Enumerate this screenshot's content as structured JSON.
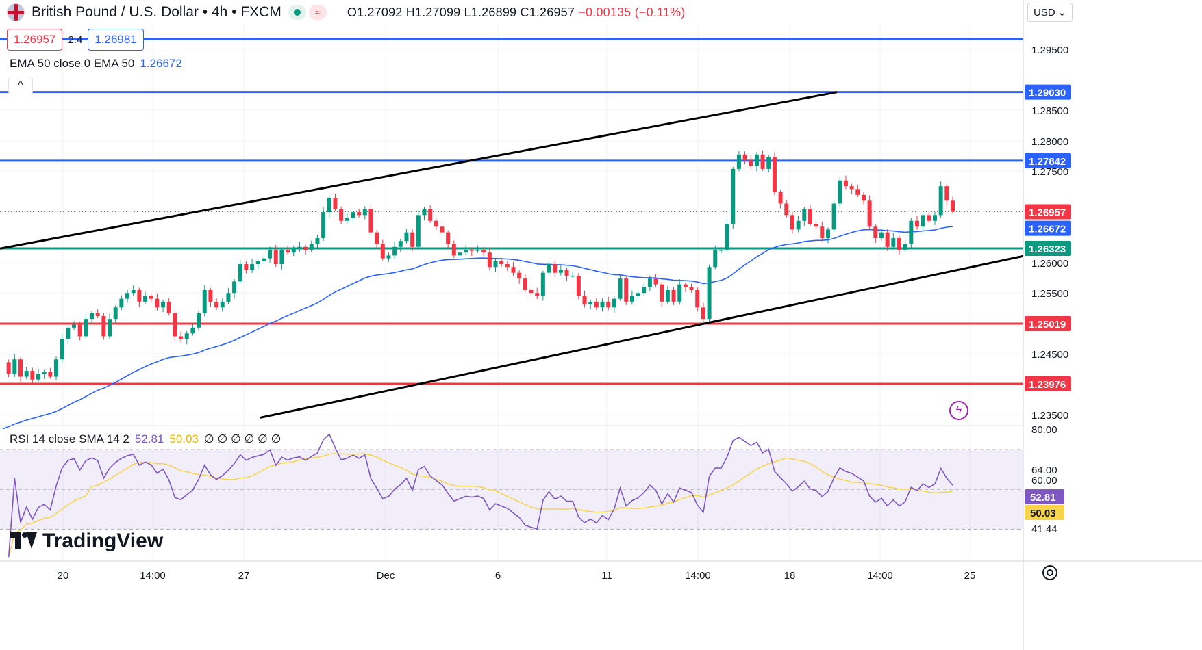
{
  "header": {
    "symbol_title": "British Pound / U.S. Dollar • 4h • FXCM",
    "ohlc_prefix": "O1.27092 H1.27099 L1.26899 C1.26957",
    "ohlc_change": "−0.00135 (−0.11%)",
    "bid": "1.26957",
    "spread": "2.4",
    "ask": "1.26981",
    "ema_label": "EMA 50 close 0 EMA 50",
    "ema_value": "1.26672",
    "currency": "USD",
    "collapse_glyph": "^",
    "flag_icon": "uk-us-flag-icon",
    "colors": {
      "up": "#089981",
      "down": "#f23645",
      "ema": "#2962ff",
      "rsi": "#7e57c2",
      "rsi_sma": "#f7d44c"
    }
  },
  "rsi": {
    "label": "RSI 14 close SMA 14 2",
    "value": "52.81",
    "sma_value": "50.03",
    "empty_values": "∅ ∅ ∅ ∅ ∅ ∅",
    "axis_labels": [
      "80.00",
      "64.00",
      "60.00",
      "41.44"
    ],
    "tags": [
      "52.81",
      "50.03"
    ]
  },
  "logo": {
    "text": "TradingView"
  },
  "chart_data": {
    "type": "candlestick",
    "instrument": "GBP/USD",
    "timeframe": "4h",
    "price_axis": {
      "range": [
        1.233,
        1.302
      ],
      "tick_labels": [
        "1.29500",
        "1.28500",
        "1.28000",
        "1.27500",
        "1.26000",
        "1.25500",
        "1.24500",
        "1.23500"
      ],
      "tag_labels": [
        {
          "text": "1.29030",
          "value": 1.2903,
          "color": "#2962ff"
        },
        {
          "text": "1.27842",
          "value": 1.27842,
          "color": "#2962ff"
        },
        {
          "text": "1.26957",
          "value": 1.26957,
          "color": "#f23645"
        },
        {
          "text": "1.26672",
          "value": 1.26672,
          "color": "#2962ff"
        },
        {
          "text": "1.26323",
          "value": 1.26323,
          "color": "#089981"
        },
        {
          "text": "1.25019",
          "value": 1.25019,
          "color": "#f23645"
        },
        {
          "text": "1.23976",
          "value": 1.23976,
          "color": "#f23645"
        }
      ]
    },
    "time_axis": {
      "labels": [
        "20",
        "14:00",
        "27",
        "Dec",
        "6",
        "11",
        "14:00",
        "18",
        "14:00",
        "25"
      ]
    },
    "horizontal_levels": [
      {
        "value": 1.2995,
        "color": "#2962ff"
      },
      {
        "value": 1.2903,
        "color": "#2962ff"
      },
      {
        "value": 1.27842,
        "color": "#2962ff"
      },
      {
        "value": 1.26323,
        "color": "#089981"
      },
      {
        "value": 1.25019,
        "color": "#f23645"
      },
      {
        "value": 1.23976,
        "color": "#f23645"
      }
    ],
    "channel_lines": [
      {
        "from": [
          0,
          1.2632
        ],
        "to": [
          1222,
          1.2903
        ]
      },
      {
        "from": [
          380,
          1.2339
        ],
        "to": [
          1494,
          1.2619
        ]
      }
    ],
    "last_price": 1.26957,
    "ema50_value": 1.26672,
    "closes": [
      1.2435,
      1.2415,
      1.244,
      1.241,
      1.242,
      1.2405,
      1.2415,
      1.2418,
      1.241,
      1.244,
      1.2475,
      1.2495,
      1.25,
      1.248,
      1.251,
      1.252,
      1.2515,
      1.248,
      1.251,
      1.253,
      1.2545,
      1.2555,
      1.256,
      1.254,
      1.255,
      1.2545,
      1.253,
      1.254,
      1.252,
      1.248,
      1.2475,
      1.2485,
      1.2495,
      1.252,
      1.256,
      1.254,
      1.253,
      1.254,
      1.2555,
      1.2575,
      1.2605,
      1.2595,
      1.2605,
      1.261,
      1.2615,
      1.263,
      1.2605,
      1.263,
      1.2625,
      1.2632,
      1.2635,
      1.263,
      1.264,
      1.265,
      1.2695,
      1.272,
      1.27,
      1.268,
      1.2685,
      1.2695,
      1.269,
      1.27,
      1.266,
      1.264,
      1.2615,
      1.262,
      1.2635,
      1.2645,
      1.266,
      1.2635,
      1.269,
      1.27,
      1.268,
      1.267,
      1.266,
      1.264,
      1.262,
      1.2625,
      1.263,
      1.2628,
      1.263,
      1.2625,
      1.26,
      1.261,
      1.2605,
      1.26,
      1.259,
      1.258,
      1.256,
      1.2555,
      1.255,
      1.259,
      1.2605,
      1.259,
      1.2595,
      1.2585,
      1.2585,
      1.255,
      1.2535,
      1.254,
      1.253,
      1.254,
      1.253,
      1.2545,
      1.258,
      1.254,
      1.255,
      1.2555,
      1.2565,
      1.258,
      1.257,
      1.254,
      1.256,
      1.254,
      1.257,
      1.2565,
      1.256,
      1.253,
      1.251,
      1.26,
      1.263,
      1.263,
      1.2675,
      1.277,
      1.2795,
      1.2785,
      1.2775,
      1.2795,
      1.277,
      1.279,
      1.273,
      1.271,
      1.269,
      1.2665,
      1.268,
      1.27,
      1.2675,
      1.267,
      1.265,
      1.2665,
      1.271,
      1.275,
      1.274,
      1.2735,
      1.2725,
      1.2715,
      1.267,
      1.265,
      1.266,
      1.2635,
      1.265,
      1.263,
      1.264,
      1.268,
      1.267,
      1.269,
      1.268,
      1.269,
      1.274,
      1.2715,
      1.26957
    ]
  }
}
